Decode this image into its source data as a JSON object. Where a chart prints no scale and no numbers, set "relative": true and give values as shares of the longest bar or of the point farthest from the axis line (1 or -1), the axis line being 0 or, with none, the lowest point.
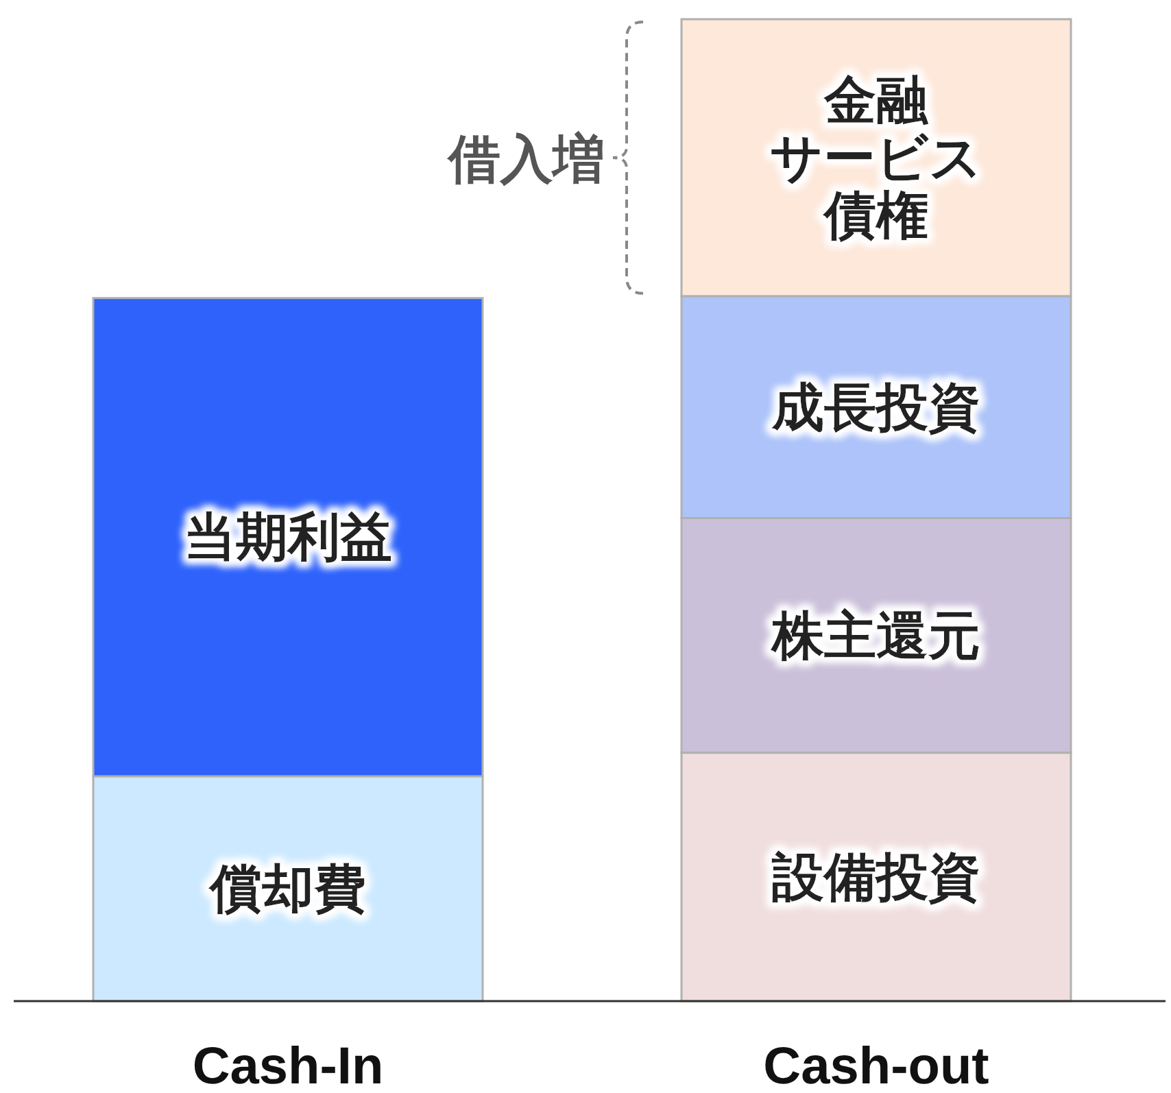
{
  "chart_data": {
    "type": "bar",
    "stacked": true,
    "relative": true,
    "categories": [
      "Cash-In",
      "Cash-out"
    ],
    "series": [
      {
        "name": "償却費",
        "color": "#cce9ff",
        "values": [
          0.229,
          null
        ]
      },
      {
        "name": "当期利益",
        "color": "#2e62fb",
        "values": [
          0.487,
          null
        ]
      },
      {
        "name": "設備投資",
        "color": "#f0dede",
        "values": [
          null,
          0.253
        ]
      },
      {
        "name": "株主還元",
        "color": "#cbc0d9",
        "values": [
          null,
          0.239
        ]
      },
      {
        "name": "成長投資",
        "color": "#adc3f9",
        "values": [
          null,
          0.226
        ]
      },
      {
        "name": "金融サービス債権",
        "color": "#fde8da",
        "values": [
          null,
          0.282
        ]
      }
    ],
    "annotations": [
      "借入増"
    ]
  }
}
